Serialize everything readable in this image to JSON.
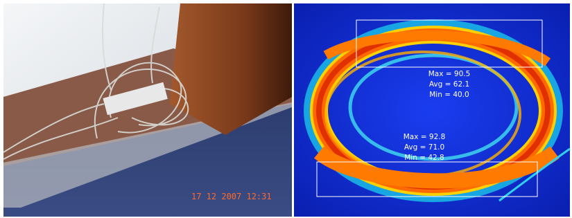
{
  "photo": {
    "timestamp": "17 12 2007 12:31"
  },
  "thermal": {
    "regions": [
      {
        "max": "Max = 90.5",
        "avg": "Avg = 62.1",
        "min": "Min = 40.0"
      },
      {
        "max": "Max = 92.8",
        "avg": "Avg = 71.0",
        "min": "Min = 42.8"
      }
    ]
  }
}
